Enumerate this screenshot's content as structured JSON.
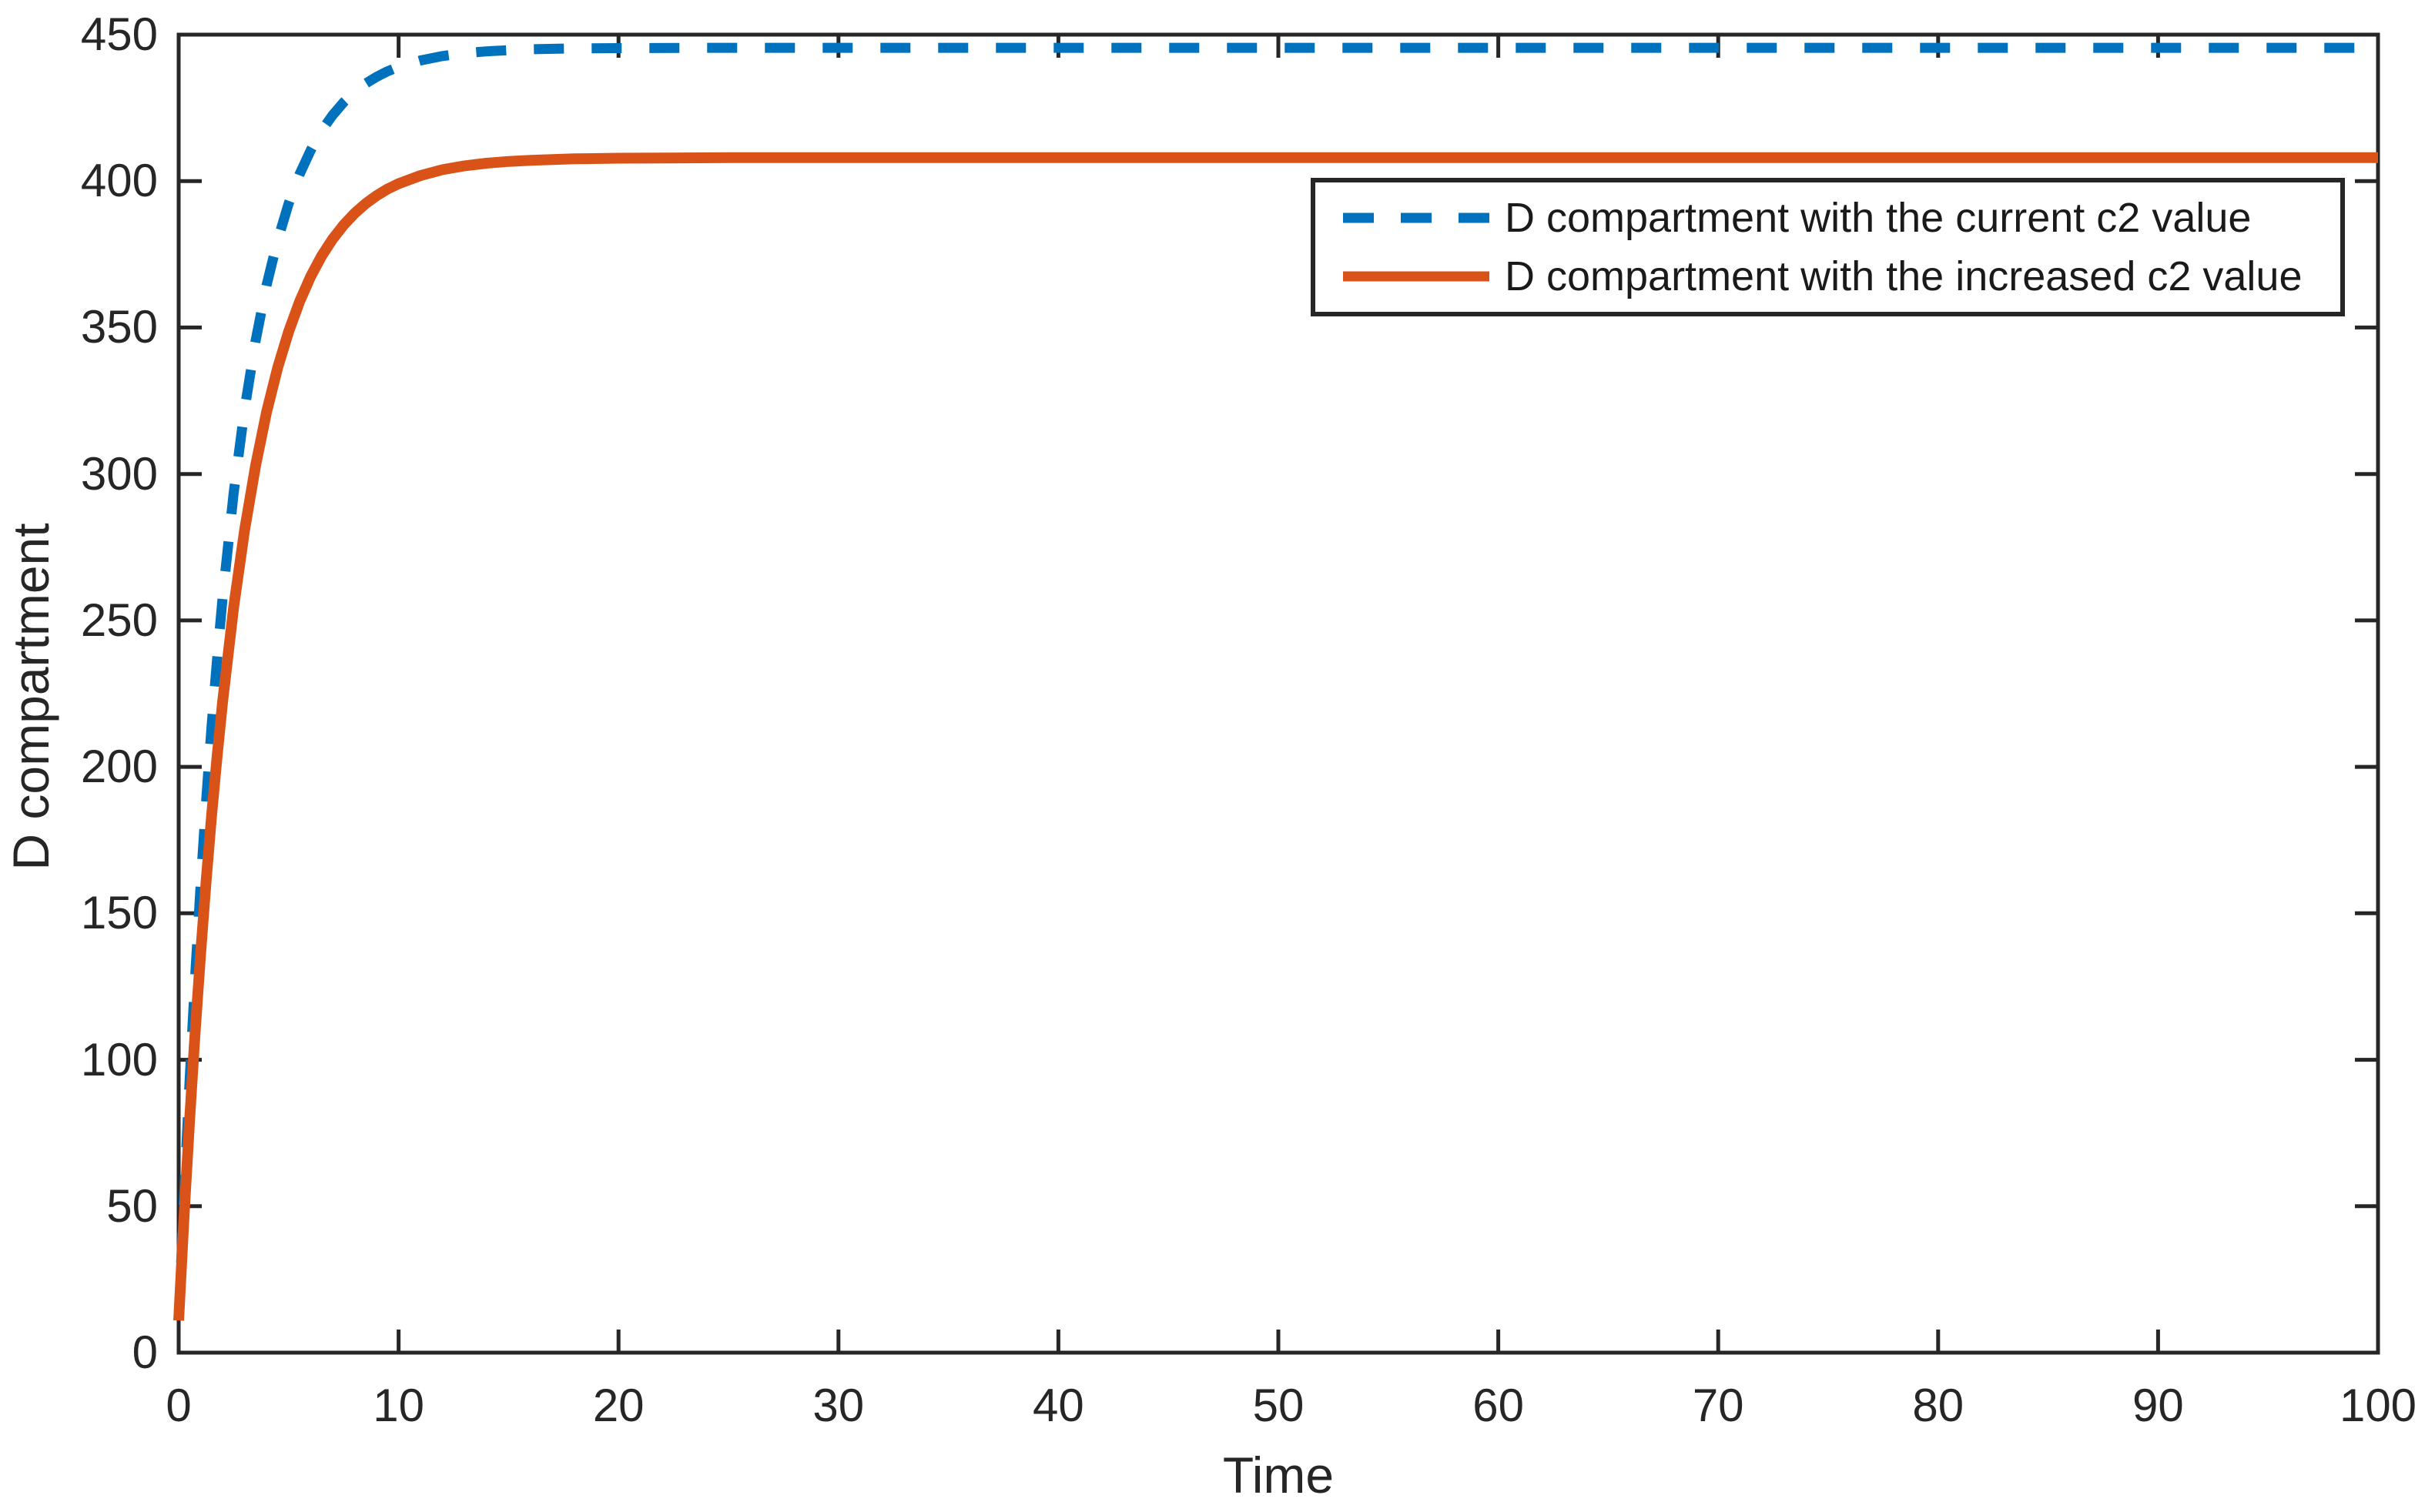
{
  "figure": {
    "background": "#ffffff",
    "axis_color": "#262626",
    "text_color": "#262626"
  },
  "chart_data": {
    "type": "line",
    "title": "",
    "xlabel": "Time",
    "ylabel": "D compartment",
    "xlim": [
      0,
      100
    ],
    "ylim": [
      0,
      450
    ],
    "x_ticks": [
      0,
      10,
      20,
      30,
      40,
      50,
      60,
      70,
      80,
      90,
      100
    ],
    "y_ticks": [
      0,
      50,
      100,
      150,
      200,
      250,
      300,
      350,
      400,
      450
    ],
    "grid": false,
    "box": true,
    "tick_direction": "in",
    "legend_position": "upper-right-inside",
    "x": [
      0,
      0.25,
      0.5,
      0.75,
      1,
      1.25,
      1.5,
      1.75,
      2,
      2.5,
      3,
      3.5,
      4,
      4.5,
      5,
      5.5,
      6,
      6.5,
      7,
      7.5,
      8,
      8.5,
      9,
      9.5,
      10,
      11,
      12,
      13,
      14,
      15,
      16,
      18,
      20,
      25,
      30,
      40,
      60,
      80,
      100
    ],
    "series": [
      {
        "name": "D compartment with the current c2 value",
        "color": "#0072BD",
        "style": "dashed",
        "line_width": 13,
        "steady_state": 445.5,
        "values": [
          11,
          54.3,
          93.3,
          128.4,
          160,
          188.4,
          214.1,
          237.1,
          257.9,
          293.5,
          322.2,
          345.6,
          364.5,
          379.8,
          392.3,
          402.4,
          410.5,
          417.2,
          422.5,
          426.9,
          430.4,
          433.3,
          435.6,
          437.5,
          439,
          441.2,
          442.7,
          443.7,
          444.3,
          444.7,
          445,
          445.3,
          445.4,
          445.5,
          445.5,
          445.5,
          445.5,
          445.5,
          445.5
        ]
      },
      {
        "name": "D compartment with the increased c2 value",
        "color": "#D95319",
        "style": "solid",
        "line_width": 14,
        "steady_state": 408,
        "values": [
          11,
          47,
          79.7,
          109.4,
          136.5,
          161.1,
          183.5,
          203.8,
          222.3,
          254.5,
          281,
          303,
          321.2,
          336.2,
          348.6,
          358.9,
          367.4,
          374.4,
          380.2,
          385,
          389,
          392.3,
          395,
          397.3,
          399.1,
          401.9,
          403.9,
          405.2,
          406.1,
          406.7,
          407.1,
          407.6,
          407.8,
          408,
          408,
          408,
          408,
          408,
          408
        ]
      }
    ]
  }
}
